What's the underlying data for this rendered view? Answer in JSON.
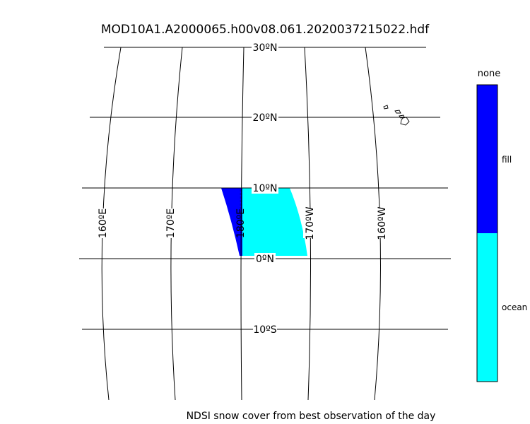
{
  "title": "MOD10A1.A2000065.h00v08.061.2020037215022.hdf",
  "caption": "NDSI snow cover from best observation of the day",
  "map": {
    "latitude_labels": [
      "30ºN",
      "20ºN",
      "10ºN",
      "0ºN",
      "10ºS"
    ],
    "longitude_labels": [
      "160ºE",
      "170ºE",
      "180ºE",
      "170ºW",
      "160ºW"
    ],
    "data_regions": [
      {
        "class": "ocean",
        "color": "#00ffff"
      },
      {
        "class": "fill",
        "color": "#0000ff"
      }
    ]
  },
  "colorbar": {
    "title": "none",
    "entries": [
      {
        "label": "fill",
        "color": "#0000ff"
      },
      {
        "label": "ocean",
        "color": "#00ffff"
      }
    ]
  }
}
